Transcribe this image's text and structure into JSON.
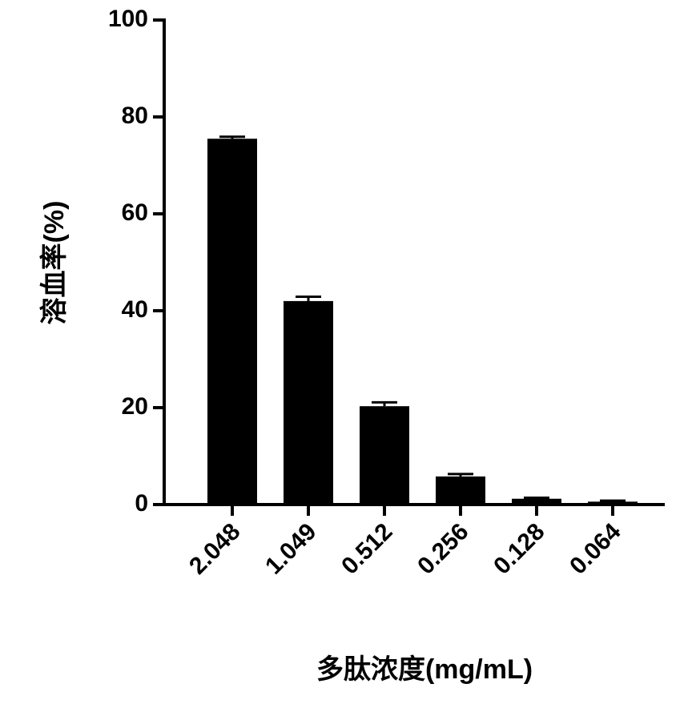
{
  "chart_data": {
    "type": "bar",
    "categories": [
      "2.048",
      "1.049",
      "0.512",
      "0.256",
      "0.128",
      "0.064"
    ],
    "values": [
      75.5,
      42,
      20.3,
      5.8,
      1.2,
      0.6
    ],
    "errors": [
      0.4,
      0.9,
      0.8,
      0.5,
      0.2,
      0.2
    ],
    "color": "#000000",
    "x_label": "多肽浓度(mg/mL)",
    "y_label": "溶血率(%)",
    "ylim": [
      0,
      100
    ],
    "yticks": [
      0,
      20,
      40,
      60,
      80,
      100
    ],
    "grid": false
  }
}
